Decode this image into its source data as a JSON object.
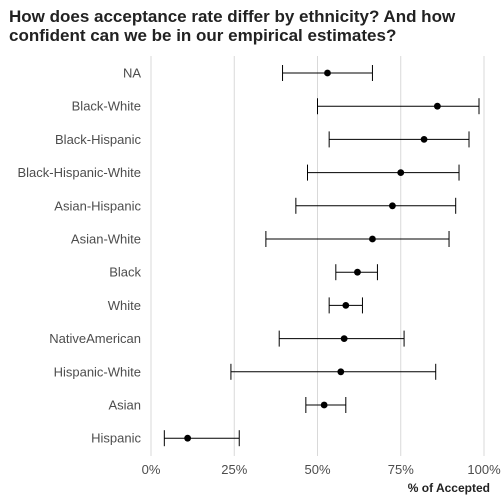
{
  "chart_data": {
    "type": "scatter",
    "title_lines": [
      "How does acceptance rate differ by ethnicity? And how",
      "confident can we be in our empirical estimates?"
    ],
    "xlabel": "% of Accepted",
    "ylabel": "",
    "xlim": [
      0,
      1
    ],
    "x_ticks": [
      0,
      0.25,
      0.5,
      0.75,
      1.0
    ],
    "x_tick_labels": [
      "0%",
      "25%",
      "50%",
      "75%",
      "100%"
    ],
    "grid": "vertical major gridlines",
    "categories": [
      "NA",
      "Black-White",
      "Black-Hispanic",
      "Black-Hispanic-White",
      "Asian-Hispanic",
      "Asian-White",
      "Black",
      "White",
      "NativeAmerican",
      "Hispanic-White",
      "Asian",
      "Hispanic"
    ],
    "estimate": [
      0.53,
      0.86,
      0.82,
      0.75,
      0.725,
      0.665,
      0.62,
      0.585,
      0.58,
      0.57,
      0.52,
      0.11
    ],
    "ci_low": [
      0.395,
      0.5,
      0.535,
      0.47,
      0.435,
      0.345,
      0.555,
      0.535,
      0.385,
      0.24,
      0.465,
      0.04
    ],
    "ci_high": [
      0.665,
      0.985,
      0.955,
      0.925,
      0.915,
      0.895,
      0.68,
      0.635,
      0.76,
      0.855,
      0.585,
      0.265
    ],
    "point_color": "#000000",
    "grid_color": "#d9d9d9"
  }
}
